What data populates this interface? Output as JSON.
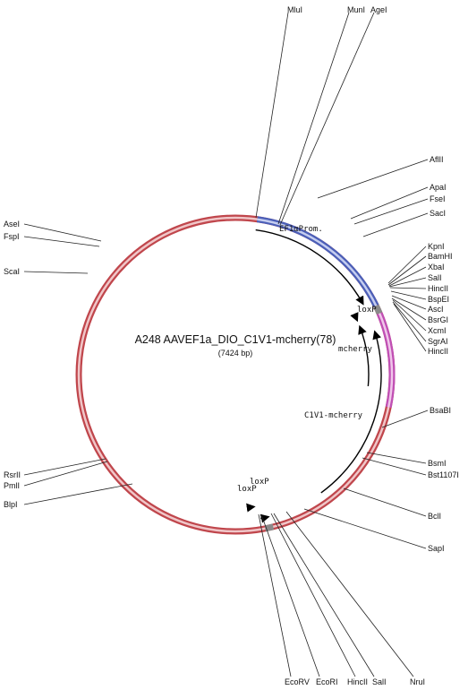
{
  "plasmid": {
    "name": "A248 AAVEF1a_DIO_C1V1-mcherry(78)",
    "length_label": "(7424 bp)",
    "colors": {
      "backbone": "#c0464c",
      "promoter": "#4b5fb8",
      "mcherry": "#c04fb5",
      "lox": "#8a8a8a"
    }
  },
  "regions": [
    {
      "name": "backbone",
      "color": "#c0464c"
    },
    {
      "name": "EF1aProm",
      "color": "#4b5fb8"
    },
    {
      "name": "mcherry",
      "color": "#c04fb5"
    },
    {
      "name": "C1V1-mcherry",
      "color": "#c0464c"
    }
  ],
  "features": [
    {
      "name": "EF1αProm."
    },
    {
      "name": "loxP",
      "copy": 1
    },
    {
      "name": "mcherry"
    },
    {
      "name": "C1V1-mcherry"
    },
    {
      "name": "loxP",
      "copy": 2
    },
    {
      "name": "loxP",
      "copy": 3
    }
  ],
  "sites": [
    "MluI",
    "MunI",
    "AgeI",
    "AflII",
    "ApaI",
    "FseI",
    "SacI",
    "KpnI",
    "BamHI",
    "XbaI",
    "SalI",
    "HincII",
    "BspEI",
    "AscI",
    "BsrGI",
    "XcmI",
    "SgrAI",
    "HincII",
    "BsaBI",
    "BsmI",
    "Bst1107I",
    "BclI",
    "SapI",
    "NruI",
    "SalI",
    "HincII",
    "EcoRI",
    "EcoRV",
    "AseI",
    "FspI",
    "ScaI",
    "RsrII",
    "PmlI",
    "BlpI"
  ]
}
